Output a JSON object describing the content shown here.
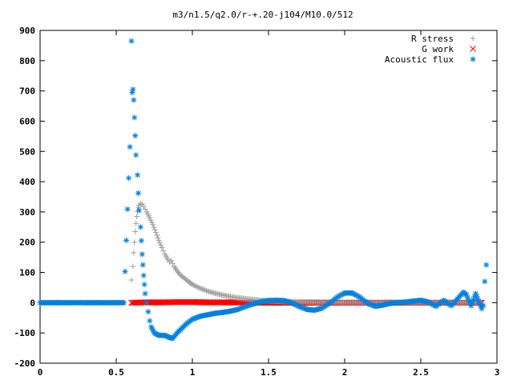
{
  "chart_data": {
    "type": "scatter",
    "title": "m3/n1.5/q2.0/r-+.20-j104/M10.0/512",
    "xlabel": "",
    "ylabel": "",
    "xlim": [
      0,
      3
    ],
    "ylim": [
      -200,
      900
    ],
    "xticks": [
      "0",
      "0.5",
      "1",
      "1.5",
      "2",
      "2.5",
      "3"
    ],
    "yticks": [
      "-200",
      "-100",
      "0",
      "100",
      "200",
      "300",
      "400",
      "500",
      "600",
      "700",
      "800",
      "900"
    ],
    "grid": false,
    "legend_position": "top-right",
    "series": [
      {
        "name": "R stress",
        "marker": "+",
        "color": "#a0a0a0",
        "points": [
          [
            0.6,
            75
          ],
          [
            0.61,
            120
          ],
          [
            0.615,
            165
          ],
          [
            0.62,
            200
          ],
          [
            0.625,
            235
          ],
          [
            0.63,
            262
          ],
          [
            0.635,
            285
          ],
          [
            0.64,
            302
          ],
          [
            0.645,
            315
          ],
          [
            0.65,
            322
          ],
          [
            0.66,
            328
          ],
          [
            0.67,
            325
          ],
          [
            0.68,
            318
          ],
          [
            0.7,
            300
          ],
          [
            0.72,
            280
          ],
          [
            0.74,
            258
          ],
          [
            0.76,
            232
          ],
          [
            0.78,
            205
          ],
          [
            0.8,
            182
          ],
          [
            0.82,
            160
          ],
          [
            0.84,
            142
          ],
          [
            0.85,
            135
          ],
          [
            0.86,
            140
          ],
          [
            0.87,
            130
          ],
          [
            0.88,
            120
          ],
          [
            0.9,
            105
          ],
          [
            0.92,
            92
          ],
          [
            0.95,
            80
          ],
          [
            0.98,
            68
          ],
          [
            1.0,
            60
          ],
          [
            1.05,
            48
          ],
          [
            1.1,
            38
          ],
          [
            1.15,
            31
          ],
          [
            1.2,
            25
          ],
          [
            1.25,
            20
          ],
          [
            1.3,
            16
          ],
          [
            1.35,
            13
          ],
          [
            1.4,
            10
          ],
          [
            1.45,
            8
          ],
          [
            1.5,
            6
          ],
          [
            1.55,
            5
          ],
          [
            1.6,
            4
          ],
          [
            1.7,
            3
          ],
          [
            1.8,
            2
          ],
          [
            1.9,
            2
          ],
          [
            2.0,
            1
          ],
          [
            2.2,
            1
          ],
          [
            2.4,
            1
          ],
          [
            2.6,
            1
          ],
          [
            2.8,
            1
          ],
          [
            2.9,
            1
          ]
        ]
      },
      {
        "name": "G work",
        "marker": "x",
        "color": "#ff0000",
        "points": [
          [
            0.6,
            0
          ],
          [
            0.7,
            1
          ],
          [
            0.8,
            1
          ],
          [
            0.9,
            2
          ],
          [
            1.0,
            2
          ],
          [
            1.1,
            1
          ],
          [
            1.2,
            1
          ],
          [
            1.3,
            1
          ],
          [
            1.4,
            0
          ],
          [
            1.5,
            0
          ],
          [
            1.6,
            0
          ],
          [
            1.7,
            -1
          ],
          [
            1.8,
            0
          ],
          [
            1.9,
            0
          ],
          [
            2.0,
            0
          ],
          [
            2.1,
            0
          ],
          [
            2.2,
            0
          ],
          [
            2.3,
            0
          ],
          [
            2.4,
            0
          ],
          [
            2.5,
            0
          ],
          [
            2.6,
            0
          ],
          [
            2.7,
            0
          ],
          [
            2.8,
            0
          ],
          [
            2.9,
            0
          ]
        ]
      },
      {
        "name": "Acoustic flux",
        "marker": "*",
        "color": "#0080e0",
        "points": [
          [
            0.0,
            0
          ],
          [
            0.1,
            0
          ],
          [
            0.2,
            0
          ],
          [
            0.3,
            0
          ],
          [
            0.4,
            0
          ],
          [
            0.5,
            0
          ],
          [
            0.55,
            0
          ],
          [
            0.59,
            515
          ],
          [
            0.6,
            865
          ],
          [
            0.605,
            695
          ],
          [
            0.61,
            705
          ],
          [
            0.615,
            670
          ],
          [
            0.62,
            612
          ],
          [
            0.625,
            552
          ],
          [
            0.63,
            488
          ],
          [
            0.64,
            422
          ],
          [
            0.645,
            362
          ],
          [
            0.65,
            305
          ],
          [
            0.66,
            250
          ],
          [
            0.665,
            205
          ],
          [
            0.67,
            160
          ],
          [
            0.675,
            125
          ],
          [
            0.68,
            90
          ],
          [
            0.685,
            60
          ],
          [
            0.69,
            30
          ],
          [
            0.7,
            0
          ],
          [
            0.71,
            -30
          ],
          [
            0.72,
            -60
          ],
          [
            0.73,
            -80
          ],
          [
            0.75,
            -100
          ],
          [
            0.78,
            -108
          ],
          [
            0.82,
            -108
          ],
          [
            0.85,
            -115
          ],
          [
            0.87,
            -118
          ],
          [
            0.9,
            -100
          ],
          [
            0.93,
            -85
          ],
          [
            0.96,
            -70
          ],
          [
            1.0,
            -55
          ],
          [
            1.05,
            -45
          ],
          [
            1.1,
            -40
          ],
          [
            1.15,
            -35
          ],
          [
            1.2,
            -32
          ],
          [
            1.25,
            -28
          ],
          [
            1.3,
            -22
          ],
          [
            1.35,
            -12
          ],
          [
            1.4,
            -4
          ],
          [
            1.45,
            3
          ],
          [
            1.5,
            7
          ],
          [
            1.55,
            8
          ],
          [
            1.6,
            7
          ],
          [
            1.65,
            0
          ],
          [
            1.7,
            -12
          ],
          [
            1.75,
            -22
          ],
          [
            1.8,
            -25
          ],
          [
            1.85,
            -18
          ],
          [
            1.9,
            -2
          ],
          [
            1.95,
            18
          ],
          [
            2.0,
            32
          ],
          [
            2.05,
            32
          ],
          [
            2.1,
            18
          ],
          [
            2.15,
            -2
          ],
          [
            2.2,
            -12
          ],
          [
            2.25,
            -8
          ],
          [
            2.3,
            -2
          ],
          [
            2.35,
            0
          ],
          [
            2.4,
            2
          ],
          [
            2.45,
            5
          ],
          [
            2.5,
            8
          ],
          [
            2.55,
            2
          ],
          [
            2.6,
            -12
          ],
          [
            2.65,
            8
          ],
          [
            2.7,
            -10
          ],
          [
            2.75,
            18
          ],
          [
            2.78,
            35
          ],
          [
            2.8,
            25
          ],
          [
            2.83,
            -10
          ],
          [
            2.86,
            30
          ],
          [
            2.88,
            5
          ],
          [
            2.9,
            -20
          ],
          [
            2.91,
            -10
          ],
          [
            2.92,
            70
          ],
          [
            2.93,
            125
          ]
        ]
      }
    ]
  }
}
